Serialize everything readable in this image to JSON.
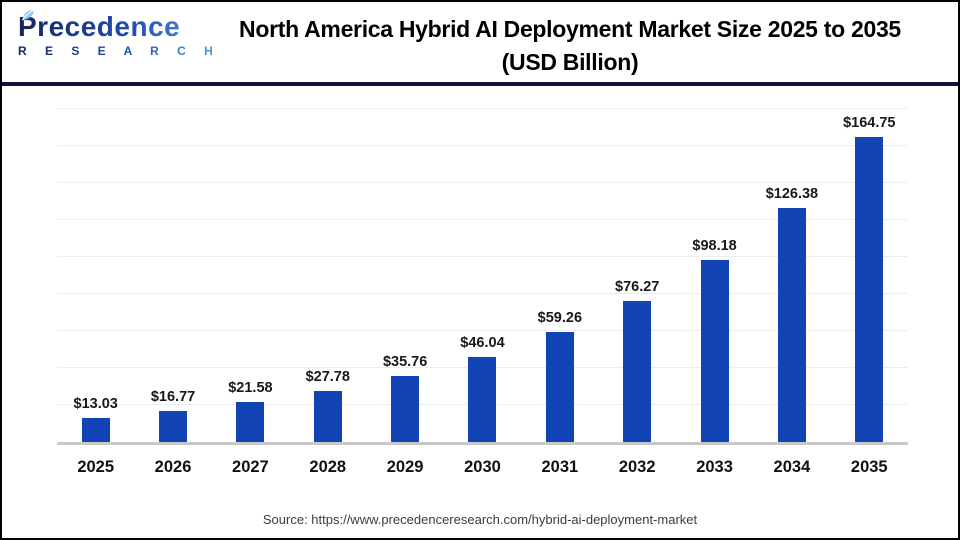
{
  "header": {
    "logo": {
      "word": "Precedence",
      "sub": "R E S E A R C H"
    },
    "title_line1": "North America Hybrid AI Deployment Market Size 2025 to 2035",
    "title_line2": "(USD Billion)"
  },
  "chart_data": {
    "type": "bar",
    "title": "North America Hybrid AI Deployment Market Size 2025 to 2035 (USD Billion)",
    "categories": [
      "2025",
      "2026",
      "2027",
      "2028",
      "2029",
      "2030",
      "2031",
      "2032",
      "2033",
      "2034",
      "2035"
    ],
    "values": [
      13.03,
      16.77,
      21.58,
      27.78,
      35.76,
      46.04,
      59.26,
      76.27,
      98.18,
      126.38,
      164.75
    ],
    "value_prefix": "$",
    "xlabel": "",
    "ylabel": "",
    "ylim": [
      0,
      180
    ],
    "grid_step": 20,
    "grid": "horizontal-only",
    "legend": "none",
    "bar_color": "#1344b5"
  },
  "footer": {
    "source": "Source: https://www.precedenceresearch.com/hybrid-ai-deployment-market"
  },
  "colors": {
    "bar": "#1344b5",
    "separator": "#12123a",
    "gridline": "#ededed",
    "baseline": "#c8c8c8",
    "outer_border": "#000000"
  }
}
